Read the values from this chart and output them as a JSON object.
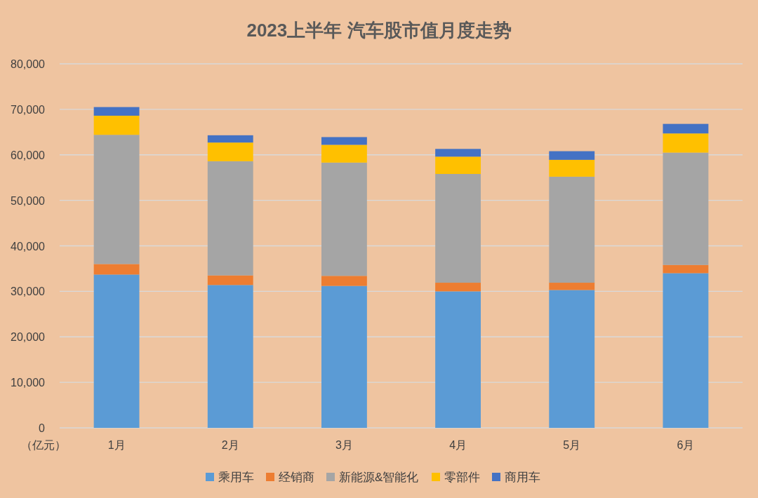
{
  "chart_data": {
    "type": "bar",
    "title": "2023上半年 汽车股市值月度走势",
    "ylabel": "（亿元）",
    "categories": [
      "1月",
      "2月",
      "3月",
      "4月",
      "5月",
      "6月"
    ],
    "stacked": true,
    "series": [
      {
        "name": "乘用车",
        "color": "#5b9bd5",
        "values": [
          33700,
          31400,
          31200,
          30000,
          30300,
          34000
        ]
      },
      {
        "name": "经销商",
        "color": "#ed7d31",
        "values": [
          2300,
          2100,
          2200,
          1900,
          1600,
          1800
        ]
      },
      {
        "name": "新能源&智能化",
        "color": "#a5a5a5",
        "values": [
          28400,
          25100,
          24900,
          23900,
          23300,
          24700
        ]
      },
      {
        "name": "零部件",
        "color": "#ffc000",
        "values": [
          4200,
          4100,
          3900,
          3800,
          3700,
          4200
        ]
      },
      {
        "name": "商用车",
        "color": "#4472c4",
        "values": [
          1900,
          1600,
          1700,
          1700,
          1900,
          2100
        ]
      }
    ],
    "ylim": [
      0,
      80000
    ],
    "yticks": [
      {
        "value": 0,
        "label": "0"
      },
      {
        "value": 10000,
        "label": "10,000"
      },
      {
        "value": 20000,
        "label": "20,000"
      },
      {
        "value": 30000,
        "label": "30,000"
      },
      {
        "value": 40000,
        "label": "40,000"
      },
      {
        "value": 50000,
        "label": "50,000"
      },
      {
        "value": 60000,
        "label": "60,000"
      },
      {
        "value": 70000,
        "label": "70,000"
      },
      {
        "value": 80000,
        "label": "80,000"
      }
    ],
    "grid": "y",
    "legend": "bottom"
  }
}
